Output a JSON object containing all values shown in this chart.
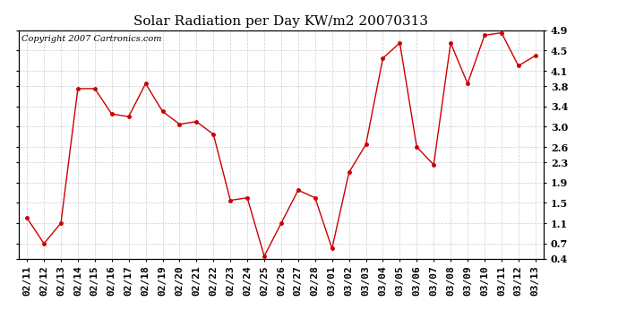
{
  "title": "Solar Radiation per Day KW/m2 20070313",
  "copyright": "Copyright 2007 Cartronics.com",
  "dates": [
    "02/11",
    "02/12",
    "02/13",
    "02/14",
    "02/15",
    "02/16",
    "02/17",
    "02/18",
    "02/19",
    "02/20",
    "02/21",
    "02/22",
    "02/23",
    "02/24",
    "02/25",
    "02/26",
    "02/27",
    "02/28",
    "03/01",
    "03/02",
    "03/03",
    "03/04",
    "03/05",
    "03/06",
    "03/07",
    "03/08",
    "03/09",
    "03/10",
    "03/11",
    "03/12",
    "03/13"
  ],
  "values": [
    1.2,
    0.7,
    1.1,
    3.75,
    3.75,
    3.25,
    3.2,
    3.85,
    3.3,
    3.05,
    3.1,
    2.85,
    1.55,
    1.6,
    0.45,
    1.1,
    1.75,
    1.6,
    0.6,
    2.1,
    2.65,
    4.35,
    4.65,
    2.6,
    2.25,
    4.65,
    3.85,
    4.8,
    4.85,
    4.2,
    4.4
  ],
  "line_color": "#cc0000",
  "marker": "o",
  "marker_size": 2.5,
  "bg_color": "#ffffff",
  "grid_color": "#cccccc",
  "ylim": [
    0.4,
    4.9
  ],
  "yticks": [
    0.4,
    0.7,
    1.1,
    1.5,
    1.9,
    2.3,
    2.6,
    3.0,
    3.4,
    3.8,
    4.1,
    4.5,
    4.9
  ],
  "title_fontsize": 11,
  "tick_fontsize": 8,
  "copyright_fontsize": 7
}
